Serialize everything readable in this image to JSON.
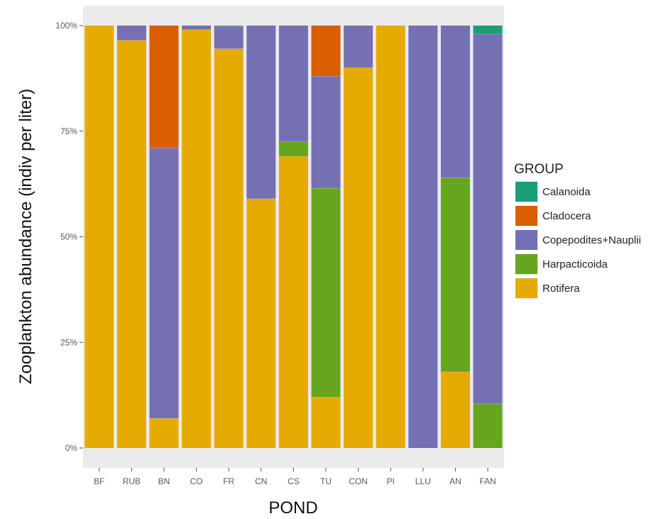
{
  "chart_data": {
    "type": "bar",
    "stacked": true,
    "percent": true,
    "title": "",
    "xlabel": "POND",
    "ylabel": "Zooplankton abundance (indiv per liter)",
    "ylim": [
      0,
      100
    ],
    "yticks": [
      {
        "value": 0,
        "label": "0%"
      },
      {
        "value": 25,
        "label": "25%"
      },
      {
        "value": 50,
        "label": "50%"
      },
      {
        "value": 75,
        "label": "75%"
      },
      {
        "value": 100,
        "label": "100%"
      }
    ],
    "grid": false,
    "legend_position": "right",
    "legend_title": "GROUP",
    "categories": [
      "BF",
      "RUB",
      "BN",
      "CO",
      "FR",
      "CN",
      "CS",
      "TU",
      "CON",
      "PI",
      "LLU",
      "AN",
      "FAN"
    ],
    "series": [
      {
        "name": "Rotifera",
        "color": "#E6AB02",
        "values": [
          100,
          96.5,
          7,
          99,
          94.5,
          59,
          69,
          12,
          90,
          100,
          0,
          18,
          0
        ]
      },
      {
        "name": "Harpacticoida",
        "color": "#66A61E",
        "values": [
          0,
          0,
          0,
          0,
          0,
          0,
          3.5,
          49.5,
          0,
          0,
          0,
          46,
          10.5
        ]
      },
      {
        "name": "Copepodites+Nauplii",
        "color": "#7570B3",
        "values": [
          0,
          3.5,
          64,
          1,
          5.3,
          41,
          27.5,
          26.5,
          10,
          0,
          100,
          36,
          87.5
        ]
      },
      {
        "name": "Cladocera",
        "color": "#D95F02",
        "values": [
          0,
          0,
          29,
          0,
          0,
          0,
          0,
          12,
          0,
          0,
          0,
          0,
          0
        ]
      },
      {
        "name": "Calanoida",
        "color": "#1B9E77",
        "values": [
          0,
          0,
          0,
          0,
          0.2,
          0,
          0,
          0,
          0,
          0,
          0,
          0,
          2
        ]
      }
    ],
    "legend_order": [
      "Calanoida",
      "Cladocera",
      "Copepodites+Nauplii",
      "Harpacticoida",
      "Rotifera"
    ]
  }
}
